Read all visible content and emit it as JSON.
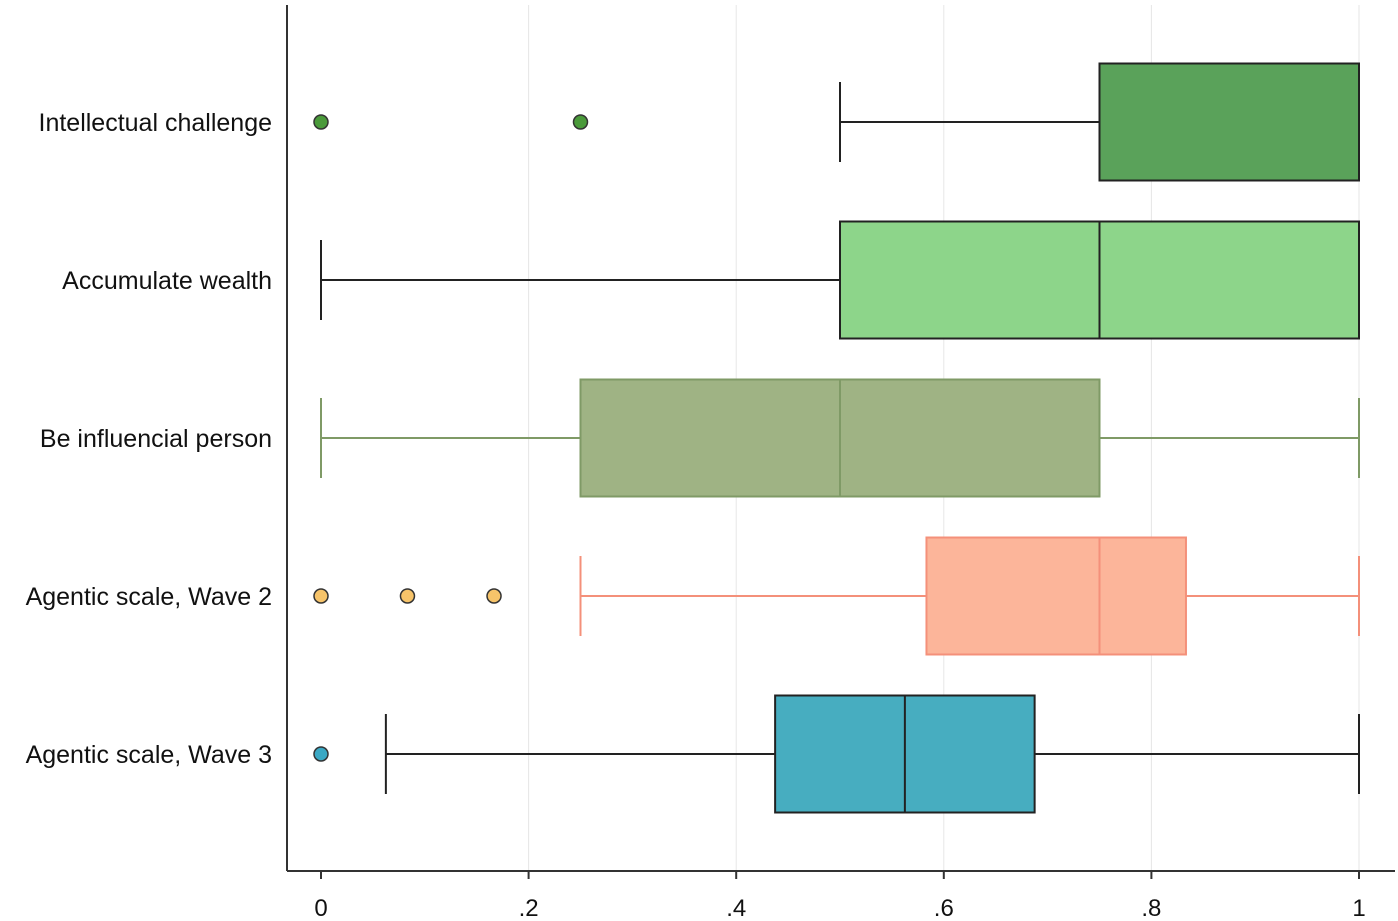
{
  "chart_data": {
    "type": "boxplot",
    "orientation": "horizontal",
    "title": "",
    "xlabel": "",
    "ylabel": "",
    "xlim": [
      0,
      1
    ],
    "xticks": [
      {
        "value": 0,
        "label": "0"
      },
      {
        "value": 0.2,
        "label": ".2"
      },
      {
        "value": 0.4,
        "label": ".4"
      },
      {
        "value": 0.6,
        "label": ".6"
      },
      {
        "value": 0.8,
        "label": ".8"
      },
      {
        "value": 1,
        "label": "1"
      }
    ],
    "grid": "vertical",
    "series": [
      {
        "category": "Intellectual challenge",
        "whisker_low": 0.5,
        "q1": 0.75,
        "median": 1.0,
        "q3": 1.0,
        "whisker_high": 1.0,
        "outliers": [
          0,
          0.25
        ],
        "fill": "#5aa25a",
        "line": "#222222",
        "outlier_fill": "#4a9a3a"
      },
      {
        "category": "Accumulate wealth",
        "whisker_low": 0,
        "q1": 0.5,
        "median": 0.75,
        "q3": 1.0,
        "whisker_high": 1.0,
        "outliers": [],
        "fill": "#8dd58a",
        "line": "#222222",
        "outlier_fill": "#8dd58a"
      },
      {
        "category": "Be influencial person",
        "whisker_low": 0,
        "q1": 0.25,
        "median": 0.5,
        "q3": 0.75,
        "whisker_high": 1.0,
        "outliers": [],
        "fill": "#9fb384",
        "line": "#7f9a66",
        "outlier_fill": "#9fb384"
      },
      {
        "category": "Agentic scale, Wave 2",
        "whisker_low": 0.25,
        "q1": 0.5833,
        "median": 0.75,
        "q3": 0.8333,
        "whisker_high": 1.0,
        "outliers": [
          0,
          0.0833,
          0.1667
        ],
        "fill": "#fcb59a",
        "line": "#f4907a",
        "outlier_fill": "#f7c46a"
      },
      {
        "category": "Agentic scale, Wave 3",
        "whisker_low": 0.0625,
        "q1": 0.4375,
        "median": 0.5625,
        "q3": 0.6875,
        "whisker_high": 1.0,
        "outliers": [
          0
        ],
        "fill": "#47adc0",
        "line": "#222222",
        "outlier_fill": "#3aa8c4"
      }
    ]
  }
}
